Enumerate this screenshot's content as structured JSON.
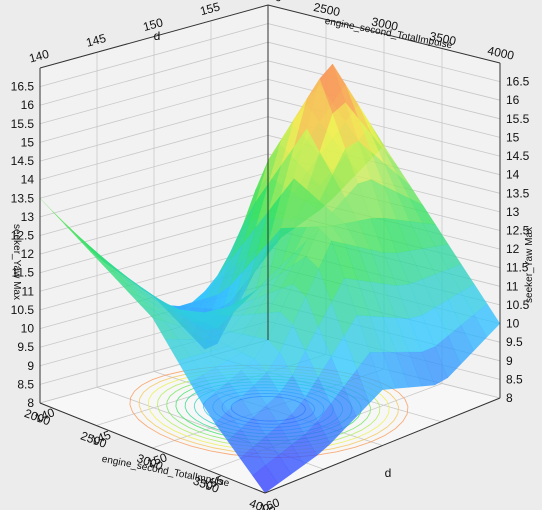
{
  "chart_data": {
    "type": "surface3d",
    "title": "",
    "axes": {
      "d": {
        "label": "d",
        "ticks": [
          140,
          145,
          150,
          155,
          160
        ],
        "range": [
          140,
          160
        ]
      },
      "impulse": {
        "label": "engine_second_TotalImpulse",
        "ticks": [
          2000,
          2500,
          3000,
          3500,
          4000
        ],
        "range": [
          2000,
          4000
        ]
      },
      "z": {
        "label": "seeker_Yaw Max",
        "ticks": [
          "8",
          "8.5",
          "9",
          "9.5",
          "10",
          "10.5",
          "11",
          "11.5",
          "12",
          "12.5",
          "13",
          "13.5",
          "14",
          "14.5",
          "15",
          "15.5",
          "16",
          "16.5"
        ],
        "range": [
          8,
          17
        ]
      }
    },
    "surface": {
      "d": [
        140,
        145,
        150,
        155,
        160
      ],
      "impulse": [
        2000,
        2500,
        3000,
        3500,
        4000
      ],
      "z": [
        [
          10.5,
          8.0,
          10.0,
          11.5,
          13.5
        ],
        [
          12.0,
          14.0,
          9.5,
          11.0,
          12.5
        ],
        [
          14.0,
          17.0,
          11.5,
          10.5,
          11.5
        ],
        [
          12.0,
          12.5,
          13.5,
          10.5,
          9.5
        ],
        [
          10.0,
          9.0,
          9.5,
          8.5,
          8.0
        ]
      ]
    },
    "contour_on_floor": true,
    "colormap": [
      "#3232ff",
      "#30c8ff",
      "#30e060",
      "#f0f050",
      "#ff6060"
    ],
    "grid": true,
    "legend": "none"
  }
}
